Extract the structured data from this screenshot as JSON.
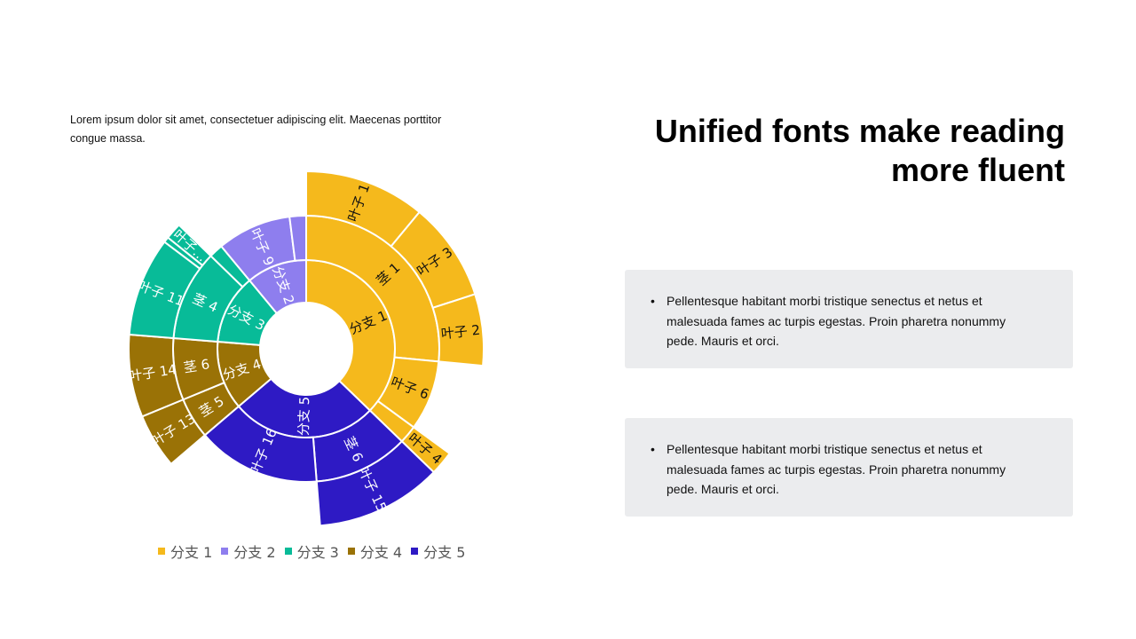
{
  "intro_text": "Lorem ipsum dolor sit amet, consectetuer adipiscing elit. Maecenas porttitor congue massa.",
  "title": "Unified fonts make reading more fluent",
  "boxes": [
    {
      "text": "Pellentesque  habitant  morbi tristique senectus  et netus  et malesuada  fames ac turpis  egestas. Proin pharetra  nonummy pede. Mauris et orci."
    },
    {
      "text": "Pellentesque  habitant  morbi tristique senectus  et netus  et malesuada  fames ac turpis  egestas. Proin pharetra  nonummy pede. Mauris et orci."
    }
  ],
  "chart_data": {
    "type": "sunburst",
    "legend_position": "bottom",
    "legend": [
      "分支 1",
      "分支 2",
      "分支 3",
      "分支 4",
      "分支 5"
    ],
    "branches": [
      {
        "name": "分支 1",
        "color": "#F5B91C",
        "text_color": "#111111",
        "children": [
          {
            "name": "茎 1",
            "children": [
              {
                "name": "叶子 1",
                "value": 11
              },
              {
                "name": "叶子 3",
                "value": 9
              },
              {
                "name": "叶子 2",
                "value": 6.5
              }
            ]
          },
          {
            "name": "叶子 6",
            "value": 8.5
          },
          {
            "name": "",
            "children": [
              {
                "name": "叶子 4",
                "value": 2.2
              }
            ]
          }
        ]
      },
      {
        "name": "分支 5",
        "color": "#2E1AC4",
        "text_color": "#ffffff",
        "children": [
          {
            "name": "茎 6",
            "children": [
              {
                "name": "叶子 15",
                "value": 11.5
              }
            ]
          },
          {
            "name": "叶子 16",
            "value": 15
          }
        ]
      },
      {
        "name": "分支 4",
        "color": "#9A7206",
        "text_color": "#ffffff",
        "children": [
          {
            "name": "茎 5",
            "children": [
              {
                "name": "叶子 13",
                "value": 5
              }
            ]
          },
          {
            "name": "茎 6",
            "children": [
              {
                "name": "叶子 14",
                "value": 7.5
              }
            ]
          }
        ]
      },
      {
        "name": "分支 3",
        "color": "#08BB98",
        "text_color": "#ffffff",
        "children": [
          {
            "name": "茎 4",
            "children": [
              {
                "name": "叶子 11",
                "value": 9
              },
              {
                "name": "",
                "value": 0.5
              },
              {
                "name": "叶子…",
                "value": 1.5
              }
            ]
          },
          {
            "name": "",
            "value": 1.7
          }
        ]
      },
      {
        "name": "分支 2",
        "color": "#8E7EEE",
        "text_color": "#ffffff",
        "children": [
          {
            "name": "叶子 9",
            "value": 9
          },
          {
            "name": "",
            "value": 2
          }
        ]
      }
    ]
  }
}
